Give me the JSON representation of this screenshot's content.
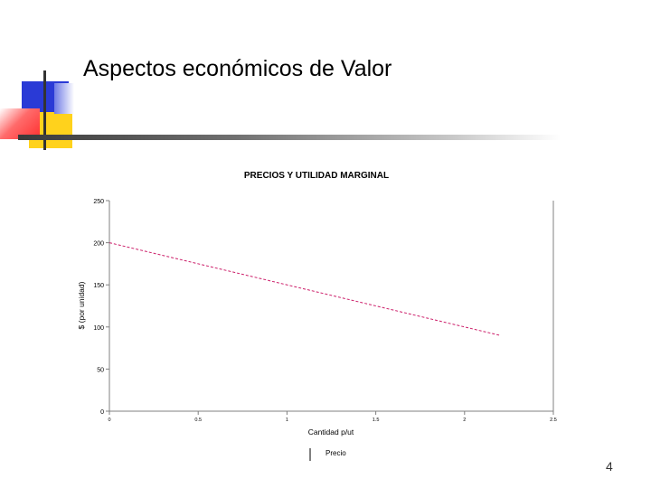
{
  "slide": {
    "title": "Aspectos económicos de Valor",
    "page_number": "4"
  },
  "colors": {
    "series_line": "#cc1f6a",
    "deco_blue": "#2a3ad6",
    "deco_yellow": "#ffd21c",
    "deco_red": "#ff5050"
  },
  "chart_data": {
    "type": "line",
    "title": "PRECIOS Y UTILIDAD MARGINAL",
    "xlabel": "Cantidad p/ut",
    "ylabel": "$ (por unidad)",
    "xlim": [
      0,
      2.5
    ],
    "ylim": [
      0,
      250
    ],
    "x_ticks": [
      "0",
      "0.5",
      "1",
      "1.5",
      "2",
      "2.5"
    ],
    "y_ticks": [
      "0",
      "50",
      "100",
      "150",
      "200",
      "250"
    ],
    "grid": false,
    "legend_position": "bottom-center",
    "series": [
      {
        "name": "Precio",
        "x": [
          0,
          2.2
        ],
        "y": [
          200,
          90
        ],
        "style": "dashed"
      }
    ]
  }
}
